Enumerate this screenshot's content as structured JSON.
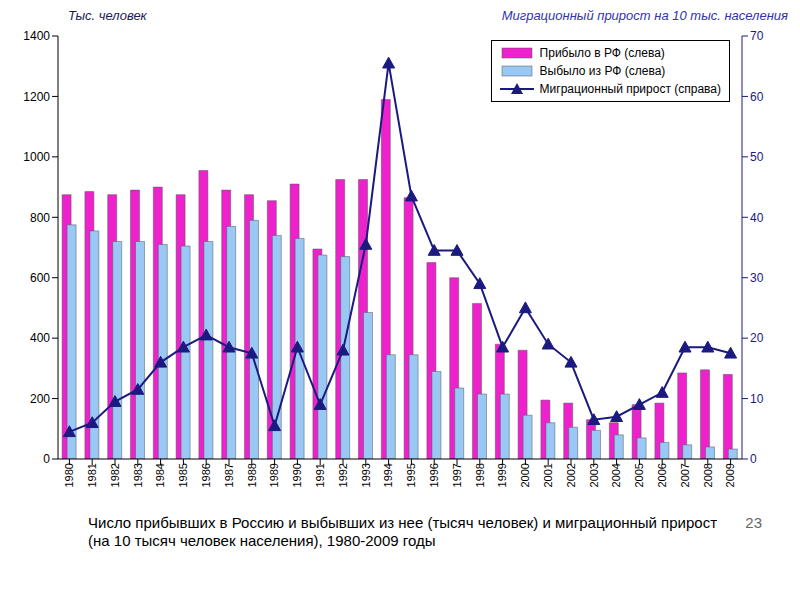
{
  "chart_data": {
    "type": "bar",
    "title": "Число прибывших в Россию и выбывших из нее (тысяч человек) и миграционный прирост (на 10 тысяч человек населения), 1980-2009 годы",
    "ylabel": "Тыс. человек",
    "y2label": "Миграционный прирост на 10 тыс. населения",
    "annotations": [
      "23"
    ],
    "categories": [
      "1980",
      "1981",
      "1982",
      "1983",
      "1984",
      "1985",
      "1986",
      "1987",
      "1988",
      "1989",
      "1990",
      "1991",
      "1992",
      "1993",
      "1994",
      "1995",
      "1996",
      "1997",
      "1998",
      "1999",
      "2000",
      "2001",
      "2002",
      "2003",
      "2004",
      "2005",
      "2006",
      "2007",
      "2008",
      "2009"
    ],
    "series": [
      {
        "name": "Прибыло в РФ (слева)",
        "type": "bar",
        "color": "#ee22cc",
        "values": [
          875,
          885,
          875,
          890,
          900,
          875,
          955,
          890,
          875,
          855,
          910,
          695,
          925,
          925,
          1190,
          865,
          650,
          600,
          515,
          380,
          360,
          195,
          185,
          130,
          120,
          180,
          185,
          285,
          295,
          280
        ]
      },
      {
        "name": "Выбыло из РФ (слева)",
        "type": "bar",
        "color": "#99c8f5",
        "values": [
          775,
          755,
          720,
          720,
          710,
          705,
          720,
          770,
          790,
          740,
          730,
          675,
          670,
          485,
          345,
          345,
          290,
          235,
          215,
          215,
          145,
          120,
          105,
          95,
          80,
          70,
          55,
          47,
          40,
          33
        ]
      },
      {
        "name": "Миграционный прирост (справа)",
        "type": "line",
        "axis": "y2",
        "color": "#1a1a80",
        "marker": "triangle",
        "values": [
          4.5,
          6,
          9.5,
          11.5,
          16,
          18.5,
          20.5,
          18.5,
          17.5,
          5.5,
          18.5,
          9,
          18,
          35.5,
          65.5,
          43.5,
          34.5,
          34.5,
          29,
          18.5,
          25,
          19,
          16,
          6.5,
          7,
          9,
          11,
          18.5,
          18.5,
          17.5
        ]
      }
    ],
    "ylim": [
      0,
      1400
    ],
    "yticks": [
      0,
      200,
      400,
      600,
      800,
      1000,
      1200,
      1400
    ],
    "y2lim": [
      0,
      70
    ],
    "y2ticks": [
      0,
      10,
      20,
      30,
      40,
      50,
      60,
      70
    ],
    "grid": false,
    "legend": "upper right"
  }
}
